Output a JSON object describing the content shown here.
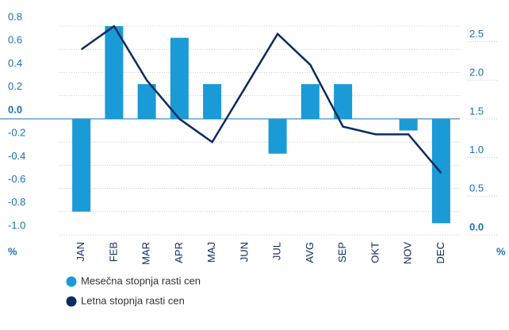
{
  "chart_data": {
    "type": "bar-line",
    "y_label": "%",
    "y2_label": "%",
    "categories": [
      "JAN",
      "FEB",
      "MAR",
      "APR",
      "MAJ",
      "JUN",
      "JUL",
      "AVG",
      "SEP",
      "OKT",
      "NOV",
      "DEC"
    ],
    "series": [
      {
        "name": "Mesečna stopnja rasti cen",
        "color": "#1a9ad6",
        "type": "bar",
        "values": [
          -0.8,
          0.8,
          0.3,
          0.7,
          0.3,
          0,
          -0.3,
          0.3,
          0.3,
          0,
          -0.1,
          -0.9
        ]
      },
      {
        "name": "Letna stopnja rasti cen",
        "color": "#0c2b5e",
        "type": "line",
        "axis": "y2",
        "values": [
          2.4,
          2.7,
          2.0,
          1.5,
          1.2,
          1.9,
          2.6,
          2.2,
          1.4,
          1.3,
          1.3,
          0.8
        ]
      }
    ],
    "ylim": [
      -1.0,
      0.8
    ],
    "yticks": [
      0.8,
      0.6,
      0.4,
      0.2,
      {
        "value": 0,
        "label": "0.0"
      },
      -0.2,
      -0.4,
      -0.6,
      -0.8,
      {
        "value": -1.0,
        "label": "-1.0"
      }
    ],
    "y2lim": [
      0,
      2.7
    ],
    "y2ticks": [
      {
        "value": 0,
        "label": "0.0"
      },
      0.5,
      {
        "value": 1,
        "label": "1.0"
      },
      1.5,
      {
        "value": 2,
        "label": "2.0"
      },
      2.5
    ],
    "grid": true
  }
}
